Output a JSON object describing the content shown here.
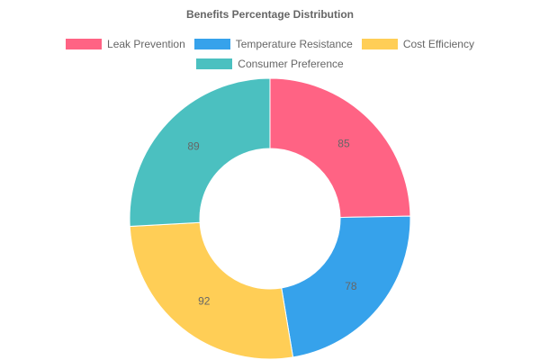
{
  "chart_data": {
    "type": "doughnut",
    "title": "Benefits Percentage Distribution",
    "legend_position": "top",
    "categories": [
      "Leak Prevention",
      "Temperature Resistance",
      "Cost Efficiency",
      "Consumer Preference"
    ],
    "values": [
      85,
      78,
      92,
      89
    ],
    "colors": [
      "#ff6384",
      "#36a2eb",
      "#ffce56",
      "#4bc0c0"
    ]
  }
}
